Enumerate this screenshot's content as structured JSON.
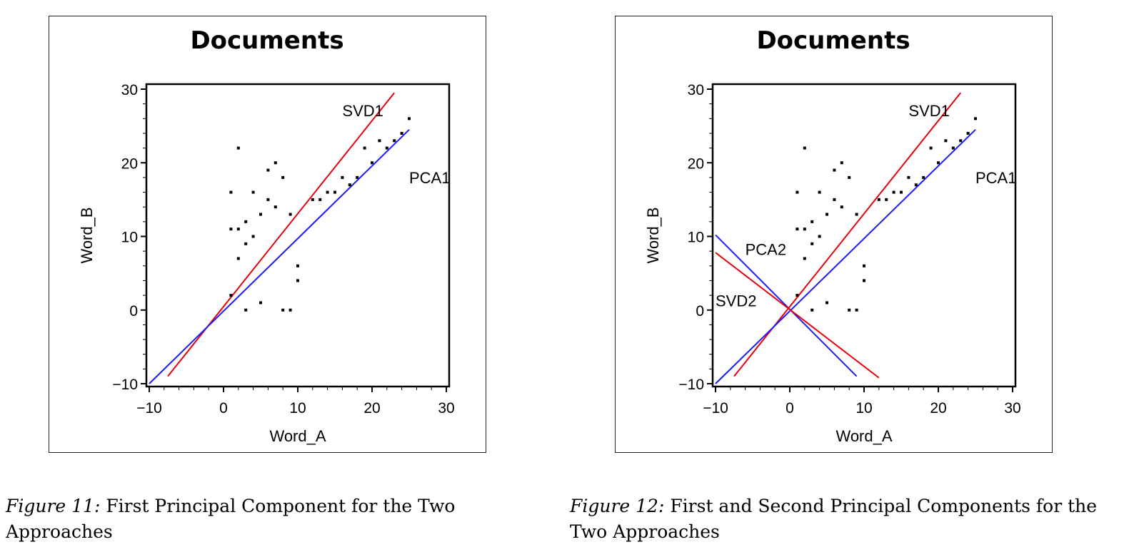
{
  "chart_data": [
    {
      "type": "scatter",
      "title": "Documents",
      "xlabel": "Word_A",
      "ylabel": "Word_B",
      "xlim": [
        -10,
        30
      ],
      "ylim": [
        -10,
        30
      ],
      "xticks": [
        "−10",
        "0",
        "10",
        "20",
        "30"
      ],
      "yticks": [
        "−10",
        "0",
        "10",
        "20",
        "30"
      ],
      "tick_values": [
        -10,
        0,
        10,
        20,
        30
      ],
      "grid": false,
      "points": [
        [
          1,
          2
        ],
        [
          1,
          11
        ],
        [
          1,
          16
        ],
        [
          2,
          7
        ],
        [
          2,
          11
        ],
        [
          2,
          22
        ],
        [
          3,
          0
        ],
        [
          3,
          9
        ],
        [
          3,
          12
        ],
        [
          4,
          10
        ],
        [
          4,
          16
        ],
        [
          5,
          1
        ],
        [
          5,
          13
        ],
        [
          6,
          15
        ],
        [
          6,
          19
        ],
        [
          7,
          14
        ],
        [
          7,
          20
        ],
        [
          8,
          0
        ],
        [
          8,
          18
        ],
        [
          9,
          0
        ],
        [
          9,
          13
        ],
        [
          10,
          4
        ],
        [
          10,
          6
        ],
        [
          12,
          15
        ],
        [
          13,
          15
        ],
        [
          14,
          16
        ],
        [
          15,
          16
        ],
        [
          16,
          18
        ],
        [
          17,
          17
        ],
        [
          18,
          18
        ],
        [
          19,
          22
        ],
        [
          20,
          20
        ],
        [
          21,
          23
        ],
        [
          22,
          22
        ],
        [
          23,
          23
        ],
        [
          24,
          24
        ],
        [
          25,
          26
        ]
      ],
      "lines": [
        {
          "name": "SVD1",
          "from": [
            -7.5,
            -9
          ],
          "to": [
            23,
            29.5
          ],
          "color": "#e8000b"
        },
        {
          "name": "PCA1",
          "from": [
            -10,
            -10
          ],
          "to": [
            25,
            24.5
          ],
          "color": "#1a1aff"
        }
      ],
      "annotations": [
        {
          "text": "SVD1",
          "x": 16,
          "y": 26.3
        },
        {
          "text": "PCA1",
          "x": 25,
          "y": 17.2
        }
      ]
    },
    {
      "type": "scatter",
      "title": "Documents",
      "xlabel": "Word_A",
      "ylabel": "Word_B",
      "xlim": [
        -10,
        30
      ],
      "ylim": [
        -10,
        30
      ],
      "xticks": [
        "−10",
        "0",
        "10",
        "20",
        "30"
      ],
      "yticks": [
        "−10",
        "0",
        "10",
        "20",
        "30"
      ],
      "tick_values": [
        -10,
        0,
        10,
        20,
        30
      ],
      "grid": false,
      "points": [
        [
          1,
          2
        ],
        [
          1,
          11
        ],
        [
          1,
          16
        ],
        [
          2,
          7
        ],
        [
          2,
          11
        ],
        [
          2,
          22
        ],
        [
          3,
          0
        ],
        [
          3,
          9
        ],
        [
          3,
          12
        ],
        [
          4,
          10
        ],
        [
          4,
          16
        ],
        [
          5,
          1
        ],
        [
          5,
          13
        ],
        [
          6,
          15
        ],
        [
          6,
          19
        ],
        [
          7,
          14
        ],
        [
          7,
          20
        ],
        [
          8,
          0
        ],
        [
          8,
          18
        ],
        [
          9,
          0
        ],
        [
          9,
          13
        ],
        [
          10,
          4
        ],
        [
          10,
          6
        ],
        [
          12,
          15
        ],
        [
          13,
          15
        ],
        [
          14,
          16
        ],
        [
          15,
          16
        ],
        [
          16,
          18
        ],
        [
          17,
          17
        ],
        [
          18,
          18
        ],
        [
          19,
          22
        ],
        [
          20,
          20
        ],
        [
          21,
          23
        ],
        [
          22,
          22
        ],
        [
          23,
          23
        ],
        [
          24,
          24
        ],
        [
          25,
          26
        ]
      ],
      "lines": [
        {
          "name": "SVD1",
          "from": [
            -7.5,
            -9
          ],
          "to": [
            23,
            29.5
          ],
          "color": "#e8000b"
        },
        {
          "name": "PCA1",
          "from": [
            -10,
            -10
          ],
          "to": [
            25,
            24.5
          ],
          "color": "#1a1aff"
        },
        {
          "name": "PCA2",
          "from": [
            -10,
            10.2
          ],
          "to": [
            9,
            -9
          ],
          "color": "#1a1aff"
        },
        {
          "name": "SVD2",
          "from": [
            -10,
            7.8
          ],
          "to": [
            12,
            -9.2
          ],
          "color": "#e8000b"
        }
      ],
      "annotations": [
        {
          "text": "SVD1",
          "x": 16,
          "y": 26.3
        },
        {
          "text": "PCA1",
          "x": 25,
          "y": 17.2
        },
        {
          "text": "PCA2",
          "x": -6,
          "y": 7.5
        },
        {
          "text": "SVD2",
          "x": -10,
          "y": 0.5
        }
      ]
    }
  ],
  "captions": [
    {
      "label": "Figure 11:",
      "text": " First Principal Component for the Two Approaches"
    },
    {
      "label": "Figure 12:",
      "text": " First and Second Principal Components for the Two Approaches"
    }
  ]
}
